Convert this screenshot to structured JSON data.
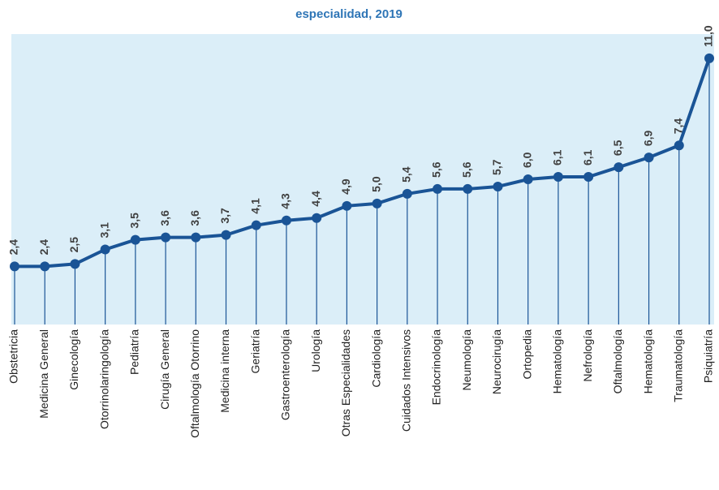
{
  "chart_data": {
    "type": "line",
    "title": "especialidad, 2019",
    "categories": [
      "Obstetricia",
      "Medicina General",
      "Ginecología",
      "Otorrinolaringología",
      "Pediatría",
      "Cirugía General",
      "Oftalmología Otorrino",
      "Medicina interna",
      "Geriatría",
      "Gastroenterología",
      "Urología",
      "Otras Especialidades",
      "Cardiología",
      "Cuidados Intensivos",
      "Endocrinología",
      "Neumología",
      "Neurocirugía",
      "Ortopedia",
      "Hematología",
      "Nefrología",
      "Oftalmología",
      "Hematología",
      "Traumatología",
      "Psiquiatría"
    ],
    "values": [
      2.4,
      2.4,
      2.5,
      3.1,
      3.5,
      3.6,
      3.6,
      3.7,
      4.1,
      4.3,
      4.4,
      4.9,
      5.0,
      5.4,
      5.6,
      5.6,
      5.7,
      6.0,
      6.1,
      6.1,
      6.5,
      6.9,
      7.4,
      11.0
    ],
    "value_labels": [
      "2,4",
      "2,4",
      "2,5",
      "3,1",
      "3,5",
      "3,6",
      "3,6",
      "3,7",
      "4,1",
      "4,3",
      "4,4",
      "4,9",
      "5,0",
      "5,4",
      "5,6",
      "5,6",
      "5,7",
      "6,0",
      "6,1",
      "6,1",
      "6,5",
      "6,9",
      "7,4",
      "11,0"
    ],
    "color": "#1a5496",
    "ylim": [
      0,
      12
    ]
  }
}
